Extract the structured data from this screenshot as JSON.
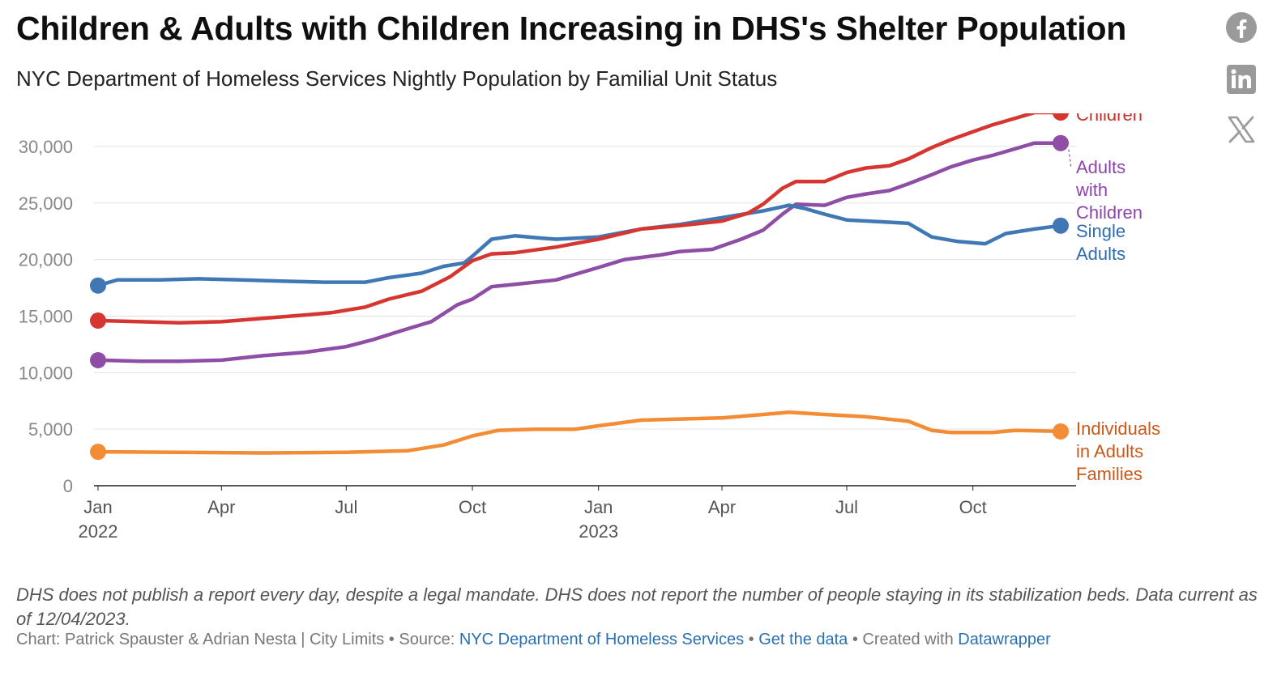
{
  "header": {
    "title": "Children & Adults with Children Increasing in DHS's Shelter Population",
    "subtitle": "NYC Department of Homeless Services Nightly Population by Familial Unit Status"
  },
  "social": [
    {
      "name": "facebook-icon",
      "color": "#9a9a9a"
    },
    {
      "name": "linkedin-icon",
      "color": "#9a9a9a"
    },
    {
      "name": "x-icon",
      "color": "#9a9a9a"
    }
  ],
  "chart_data": {
    "type": "line",
    "title": "Children & Adults with Children Increasing in DHS's Shelter Population",
    "subtitle": "NYC Department of Homeless Services Nightly Population by Familial Unit Status",
    "xlabel": "",
    "ylabel": "",
    "x_range": [
      "2022-01-01",
      "2023-12-04"
    ],
    "ylim": [
      0,
      32500
    ],
    "y_ticks": [
      0,
      5000,
      10000,
      15000,
      20000,
      25000,
      30000
    ],
    "y_tick_labels": [
      "0",
      "5,000",
      "10,000",
      "15,000",
      "20,000",
      "25,000",
      "30,000"
    ],
    "x_ticks": [
      {
        "date": "2022-01-01",
        "label": "Jan",
        "year": "2022"
      },
      {
        "date": "2022-04-01",
        "label": "Apr",
        "year": ""
      },
      {
        "date": "2022-07-01",
        "label": "Jul",
        "year": ""
      },
      {
        "date": "2022-10-01",
        "label": "Oct",
        "year": ""
      },
      {
        "date": "2023-01-01",
        "label": "Jan",
        "year": "2023"
      },
      {
        "date": "2023-04-01",
        "label": "Apr",
        "year": ""
      },
      {
        "date": "2023-07-01",
        "label": "Jul",
        "year": ""
      },
      {
        "date": "2023-10-01",
        "label": "Oct",
        "year": ""
      }
    ],
    "grid": true,
    "legend": "direct labels at right",
    "series": [
      {
        "name": "Children",
        "label_lines": [
          "Children"
        ],
        "color": "#d5362f",
        "label_color": "#c9302c",
        "points": [
          [
            "2022-01-01",
            14600
          ],
          [
            "2022-02-01",
            14500
          ],
          [
            "2022-03-01",
            14400
          ],
          [
            "2022-04-01",
            14500
          ],
          [
            "2022-05-01",
            14800
          ],
          [
            "2022-06-01",
            15100
          ],
          [
            "2022-06-20",
            15300
          ],
          [
            "2022-07-15",
            15800
          ],
          [
            "2022-08-01",
            16500
          ],
          [
            "2022-08-25",
            17200
          ],
          [
            "2022-09-15",
            18500
          ],
          [
            "2022-10-01",
            19900
          ],
          [
            "2022-10-15",
            20500
          ],
          [
            "2022-11-01",
            20600
          ],
          [
            "2022-12-01",
            21100
          ],
          [
            "2023-01-01",
            21800
          ],
          [
            "2023-02-01",
            22700
          ],
          [
            "2023-03-01",
            23000
          ],
          [
            "2023-04-01",
            23400
          ],
          [
            "2023-04-20",
            24100
          ],
          [
            "2023-05-01",
            24900
          ],
          [
            "2023-05-15",
            26300
          ],
          [
            "2023-05-25",
            26900
          ],
          [
            "2023-06-15",
            26900
          ],
          [
            "2023-07-01",
            27700
          ],
          [
            "2023-07-15",
            28100
          ],
          [
            "2023-08-01",
            28300
          ],
          [
            "2023-08-15",
            28900
          ],
          [
            "2023-09-01",
            29900
          ],
          [
            "2023-09-15",
            30600
          ],
          [
            "2023-10-01",
            31300
          ],
          [
            "2023-10-15",
            31900
          ],
          [
            "2023-11-01",
            32500
          ],
          [
            "2023-11-15",
            33000
          ],
          [
            "2023-12-04",
            33000
          ]
        ]
      },
      {
        "name": "Adults with Children",
        "label_lines": [
          "Adults",
          "with",
          "Children"
        ],
        "color": "#8e4ea6",
        "label_color": "#8e44ad",
        "points": [
          [
            "2022-01-01",
            11100
          ],
          [
            "2022-02-01",
            11000
          ],
          [
            "2022-03-01",
            11000
          ],
          [
            "2022-04-01",
            11100
          ],
          [
            "2022-05-01",
            11500
          ],
          [
            "2022-06-01",
            11800
          ],
          [
            "2022-07-01",
            12300
          ],
          [
            "2022-07-20",
            12900
          ],
          [
            "2022-08-10",
            13700
          ],
          [
            "2022-09-01",
            14500
          ],
          [
            "2022-09-20",
            16000
          ],
          [
            "2022-10-01",
            16500
          ],
          [
            "2022-10-15",
            17600
          ],
          [
            "2022-11-01",
            17800
          ],
          [
            "2022-12-01",
            18200
          ],
          [
            "2023-01-01",
            19300
          ],
          [
            "2023-01-20",
            20000
          ],
          [
            "2023-02-15",
            20400
          ],
          [
            "2023-03-01",
            20700
          ],
          [
            "2023-03-25",
            20900
          ],
          [
            "2023-04-15",
            21800
          ],
          [
            "2023-05-01",
            22600
          ],
          [
            "2023-05-15",
            24000
          ],
          [
            "2023-05-25",
            24900
          ],
          [
            "2023-06-15",
            24800
          ],
          [
            "2023-07-01",
            25500
          ],
          [
            "2023-07-15",
            25800
          ],
          [
            "2023-08-01",
            26100
          ],
          [
            "2023-08-15",
            26700
          ],
          [
            "2023-09-01",
            27500
          ],
          [
            "2023-09-15",
            28200
          ],
          [
            "2023-10-01",
            28800
          ],
          [
            "2023-10-15",
            29200
          ],
          [
            "2023-11-01",
            29800
          ],
          [
            "2023-11-15",
            30300
          ],
          [
            "2023-12-04",
            30300
          ]
        ]
      },
      {
        "name": "Single Adults",
        "label_lines": [
          "Single",
          "Adults"
        ],
        "color": "#3f78b5",
        "label_color": "#2f6cb0",
        "points": [
          [
            "2022-01-01",
            17700
          ],
          [
            "2022-01-15",
            18200
          ],
          [
            "2022-02-15",
            18200
          ],
          [
            "2022-03-15",
            18300
          ],
          [
            "2022-04-15",
            18200
          ],
          [
            "2022-05-15",
            18100
          ],
          [
            "2022-06-15",
            18000
          ],
          [
            "2022-07-15",
            18000
          ],
          [
            "2022-08-01",
            18400
          ],
          [
            "2022-08-25",
            18800
          ],
          [
            "2022-09-10",
            19400
          ],
          [
            "2022-09-25",
            19700
          ],
          [
            "2022-10-01",
            20300
          ],
          [
            "2022-10-15",
            21800
          ],
          [
            "2022-11-01",
            22100
          ],
          [
            "2022-11-20",
            21900
          ],
          [
            "2022-12-01",
            21800
          ],
          [
            "2023-01-01",
            22000
          ],
          [
            "2023-02-01",
            22700
          ],
          [
            "2023-03-01",
            23100
          ],
          [
            "2023-04-01",
            23700
          ],
          [
            "2023-05-01",
            24300
          ],
          [
            "2023-05-20",
            24800
          ],
          [
            "2023-06-01",
            24500
          ],
          [
            "2023-06-15",
            24000
          ],
          [
            "2023-07-01",
            23500
          ],
          [
            "2023-08-01",
            23300
          ],
          [
            "2023-08-15",
            23200
          ],
          [
            "2023-09-01",
            22000
          ],
          [
            "2023-09-20",
            21600
          ],
          [
            "2023-10-10",
            21400
          ],
          [
            "2023-10-25",
            22300
          ],
          [
            "2023-11-15",
            22700
          ],
          [
            "2023-12-04",
            23000
          ]
        ]
      },
      {
        "name": "Individuals in Adults Families",
        "label_lines": [
          "Individuals",
          "in Adults",
          "Families"
        ],
        "color": "#f28c35",
        "label_color": "#c9591a",
        "points": [
          [
            "2022-01-01",
            3000
          ],
          [
            "2022-03-01",
            2950
          ],
          [
            "2022-05-01",
            2900
          ],
          [
            "2022-07-01",
            2950
          ],
          [
            "2022-08-15",
            3100
          ],
          [
            "2022-09-10",
            3600
          ],
          [
            "2022-10-01",
            4400
          ],
          [
            "2022-10-20",
            4900
          ],
          [
            "2022-11-15",
            5000
          ],
          [
            "2022-12-15",
            5000
          ],
          [
            "2023-01-01",
            5300
          ],
          [
            "2023-02-01",
            5800
          ],
          [
            "2023-03-01",
            5900
          ],
          [
            "2023-04-01",
            6000
          ],
          [
            "2023-05-01",
            6300
          ],
          [
            "2023-05-20",
            6500
          ],
          [
            "2023-06-15",
            6300
          ],
          [
            "2023-07-15",
            6100
          ],
          [
            "2023-08-15",
            5700
          ],
          [
            "2023-09-01",
            4900
          ],
          [
            "2023-09-15",
            4700
          ],
          [
            "2023-10-15",
            4700
          ],
          [
            "2023-11-01",
            4900
          ],
          [
            "2023-12-04",
            4800
          ]
        ]
      }
    ]
  },
  "notes": "DHS does not publish a report every day, despite a legal mandate. DHS does not report the number of people staying in its stabilization beds. Data current as of 12/04/2023.",
  "footer": {
    "prefix": "Chart: Patrick Spauster & Adrian Nesta | City Limits • Source: ",
    "source_link": "NYC Department of Homeless Services",
    "sep1": " • ",
    "data_link": "Get the data",
    "sep2": " • Created with ",
    "dw_link": "Datawrapper"
  }
}
